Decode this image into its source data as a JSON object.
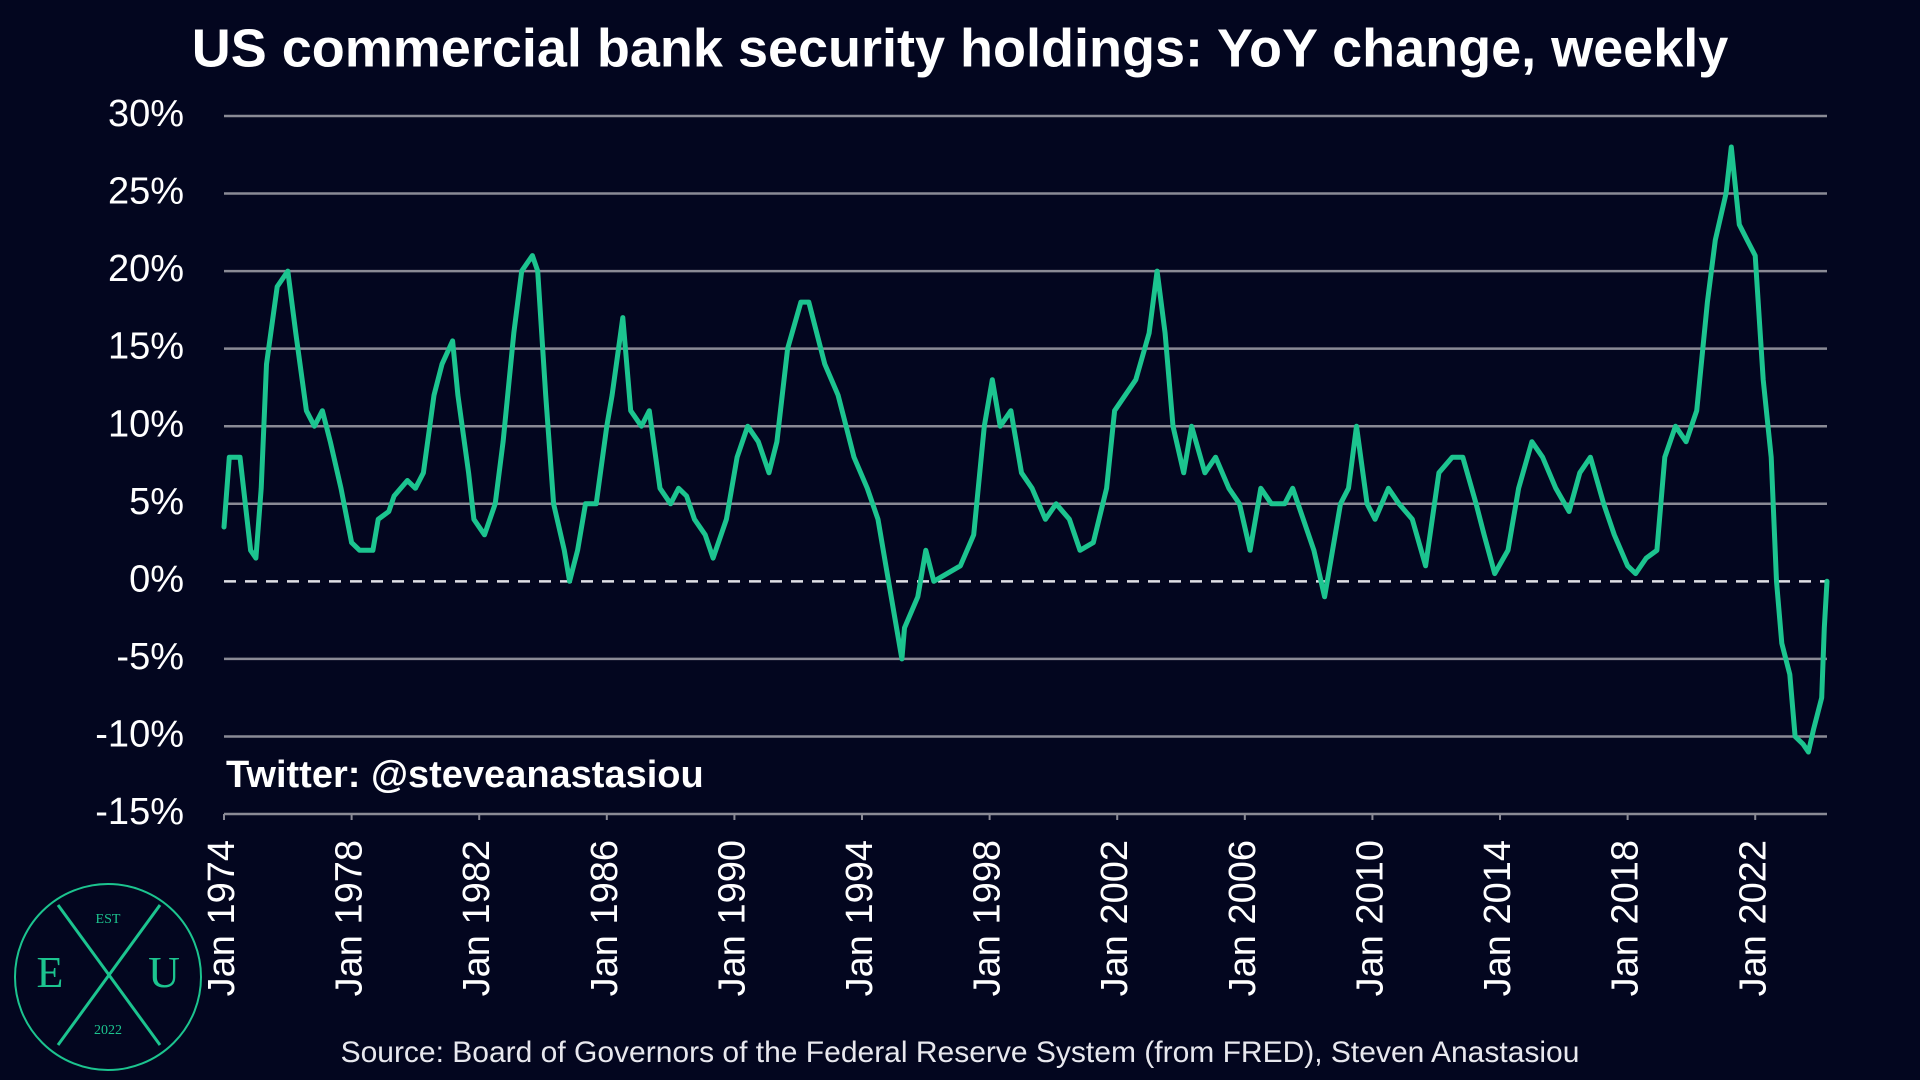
{
  "chart_data": {
    "type": "line",
    "title": "US commercial bank security holdings: YoY change, weekly",
    "source": "Source: Board of Governors of the Federal Reserve System (from FRED), Steven Anastasiou",
    "annotation": "Twitter: @steveanastasiou",
    "logo": {
      "top": "EST",
      "left": "E",
      "right": "U",
      "bottom": "2022"
    },
    "color": "#1cc48f",
    "grid": true,
    "x": [
      "1974-01",
      "1974-03",
      "1974-07",
      "1974-09",
      "1974-11",
      "1975-01",
      "1975-03",
      "1975-05",
      "1975-09",
      "1976-01",
      "1976-04",
      "1976-08",
      "1976-11",
      "1977-02",
      "1977-05",
      "1977-09",
      "1978-01",
      "1978-04",
      "1978-09",
      "1978-11",
      "1979-03",
      "1979-05",
      "1979-10",
      "1980-01",
      "1980-04",
      "1980-08",
      "1980-11",
      "1981-03",
      "1981-05",
      "1981-09",
      "1981-11",
      "1982-03",
      "1982-07",
      "1982-10",
      "1983-02",
      "1983-05",
      "1983-09",
      "1983-11",
      "1984-02",
      "1984-05",
      "1984-09",
      "1984-11",
      "1985-02",
      "1985-05",
      "1985-09",
      "1986-01",
      "1986-03",
      "1986-07",
      "1986-10",
      "1987-02",
      "1987-05",
      "1987-09",
      "1988-01",
      "1988-04",
      "1988-07",
      "1988-10",
      "1989-02",
      "1989-05",
      "1989-10",
      "1990-02",
      "1990-06",
      "1990-10",
      "1991-02",
      "1991-05",
      "1991-09",
      "1992-02",
      "1992-05",
      "1992-08",
      "1992-11",
      "1993-04",
      "1993-07",
      "1993-10",
      "1994-03",
      "1994-07",
      "1994-10",
      "1995-01",
      "1995-04",
      "1995-05",
      "1995-10",
      "1996-01",
      "1996-04",
      "1996-09",
      "1997-02",
      "1997-07",
      "1997-11",
      "1998-02",
      "1998-05",
      "1998-09",
      "1999-01",
      "1999-05",
      "1999-10",
      "2000-02",
      "2000-07",
      "2000-11",
      "2001-04",
      "2001-09",
      "2001-12",
      "2002-04",
      "2002-08",
      "2003-01",
      "2003-04",
      "2003-07",
      "2003-10",
      "2004-02",
      "2004-05",
      "2004-10",
      "2005-02",
      "2005-07",
      "2005-11",
      "2006-03",
      "2006-07",
      "2006-11",
      "2007-04",
      "2007-07",
      "2007-11",
      "2008-03",
      "2008-07",
      "2008-09",
      "2009-01",
      "2009-04",
      "2009-07",
      "2009-11",
      "2010-02",
      "2010-07",
      "2010-11",
      "2011-04",
      "2011-09",
      "2012-02",
      "2012-07",
      "2012-11",
      "2013-04",
      "2013-07",
      "2013-11",
      "2014-04",
      "2014-08",
      "2015-01",
      "2015-05",
      "2015-10",
      "2016-03",
      "2016-07",
      "2016-11",
      "2017-04",
      "2017-08",
      "2018-01",
      "2018-04",
      "2018-08",
      "2018-12",
      "2019-03",
      "2019-07",
      "2019-11",
      "2020-03",
      "2020-07",
      "2020-10",
      "2021-02",
      "2021-04",
      "2021-07",
      "2021-10",
      "2022-01",
      "2022-04",
      "2022-07",
      "2022-09",
      "2022-11",
      "2023-02",
      "2023-04",
      "2023-07",
      "2023-09",
      "2023-11",
      "2024-02",
      "2024-03",
      "2024-04"
    ],
    "values": [
      3.5,
      8,
      8,
      5,
      2,
      1.5,
      6,
      14,
      19,
      20,
      16,
      11,
      10,
      11,
      9,
      6,
      2.5,
      2,
      2,
      4,
      4.5,
      5.5,
      6.5,
      6,
      7,
      12,
      14,
      15.5,
      12,
      7,
      4,
      3,
      5,
      9,
      16,
      20,
      21,
      20,
      12,
      5,
      2,
      0,
      2,
      5,
      5,
      10,
      12,
      17,
      11,
      10,
      11,
      6,
      5,
      6,
      5.5,
      4,
      3,
      1.5,
      4,
      8,
      10,
      9,
      7,
      9,
      15,
      18,
      18,
      16,
      14,
      12,
      10,
      8,
      6,
      4,
      1,
      -2,
      -5,
      -3,
      -1,
      2,
      0,
      0.5,
      1,
      3,
      10,
      13,
      10,
      11,
      7,
      6,
      4,
      5,
      4,
      2,
      2.5,
      6,
      11,
      12,
      13,
      16,
      20,
      16,
      10,
      7,
      10,
      7,
      8,
      6,
      5,
      2,
      6,
      5,
      5,
      6,
      4,
      2,
      -1,
      1,
      5,
      6,
      10,
      5,
      4,
      6,
      5,
      4,
      1,
      7,
      8,
      8,
      5,
      3,
      0.5,
      2,
      6,
      9,
      8,
      6,
      4.5,
      7,
      8,
      5,
      3,
      1,
      0.5,
      1.5,
      2,
      8,
      10,
      9,
      11,
      18,
      22,
      25,
      28,
      23,
      22,
      21,
      13,
      8,
      0,
      -4,
      -6,
      -10,
      -10.5,
      -11,
      -9.5,
      -7.5,
      -3,
      0
    ],
    "xlim": [
      "1974-01",
      "2024-04"
    ],
    "xticks": [
      {
        "value": "1974-01",
        "label": "Jan 1974"
      },
      {
        "value": "1978-01",
        "label": "Jan 1978"
      },
      {
        "value": "1982-01",
        "label": "Jan 1982"
      },
      {
        "value": "1986-01",
        "label": "Jan 1986"
      },
      {
        "value": "1990-01",
        "label": "Jan 1990"
      },
      {
        "value": "1994-01",
        "label": "Jan 1994"
      },
      {
        "value": "1998-01",
        "label": "Jan 1998"
      },
      {
        "value": "2002-01",
        "label": "Jan 2002"
      },
      {
        "value": "2006-01",
        "label": "Jan 2006"
      },
      {
        "value": "2010-01",
        "label": "Jan 2010"
      },
      {
        "value": "2014-01",
        "label": "Jan 2014"
      },
      {
        "value": "2018-01",
        "label": "Jan 2018"
      },
      {
        "value": "2022-01",
        "label": "Jan 2022"
      }
    ],
    "ylim": [
      -15,
      30
    ],
    "yticks": [
      {
        "value": 30,
        "label": "30%"
      },
      {
        "value": 25,
        "label": "25%"
      },
      {
        "value": 20,
        "label": "20%"
      },
      {
        "value": 15,
        "label": "15%"
      },
      {
        "value": 10,
        "label": "10%"
      },
      {
        "value": 5,
        "label": "5%"
      },
      {
        "value": 0,
        "label": "0%"
      },
      {
        "value": -5,
        "label": "-5%"
      },
      {
        "value": -10,
        "label": "-10%"
      },
      {
        "value": -15,
        "label": "-15%"
      }
    ]
  }
}
